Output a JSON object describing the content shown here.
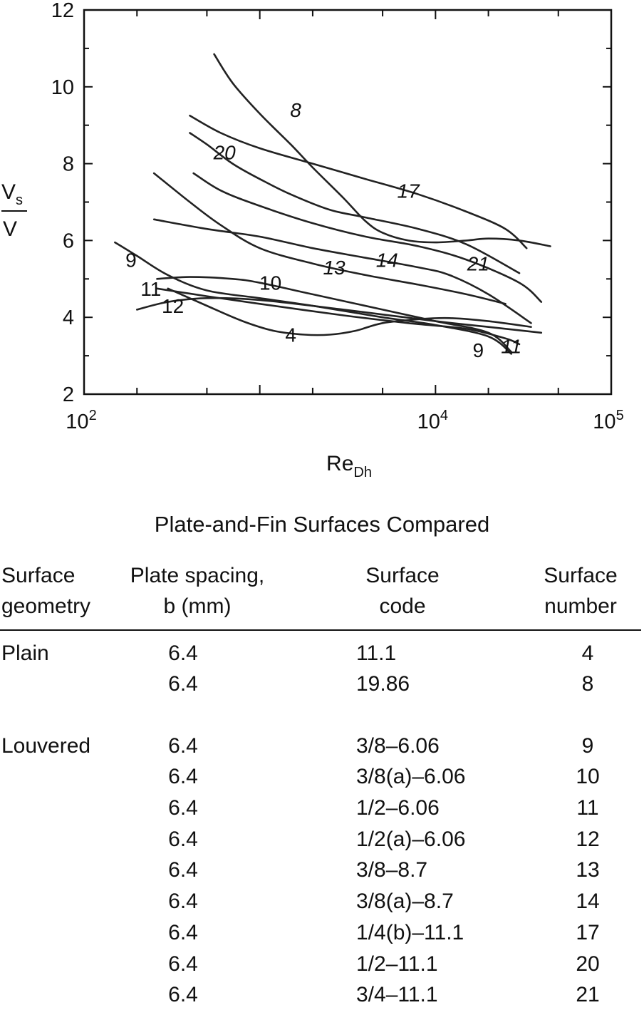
{
  "chart_data": {
    "type": "line",
    "xscale": "log",
    "xlim": [
      100,
      100000
    ],
    "ylim": [
      2,
      12
    ],
    "xlabel": {
      "main": "Re",
      "sub": "Dh"
    },
    "ylabel": {
      "num_main": "V",
      "num_sub": "s",
      "den": "V"
    },
    "x_ticks": [
      {
        "base": "10",
        "exp": "2",
        "value": 100
      },
      {
        "base": "10",
        "exp": "4",
        "value": 10000
      },
      {
        "base": "10",
        "exp": "5",
        "value": 100000
      }
    ],
    "y_ticks": [
      "2",
      "4",
      "6",
      "8",
      "10",
      "12"
    ],
    "series": [
      {
        "name": "8",
        "label_at": [
          1600,
          9.4
        ],
        "italic": true,
        "points": [
          [
            550,
            10.85
          ],
          [
            700,
            10.1
          ],
          [
            1000,
            9.3
          ],
          [
            1500,
            8.5
          ],
          [
            2000,
            7.9
          ],
          [
            3000,
            7.1
          ],
          [
            4000,
            6.5
          ],
          [
            5000,
            6.2
          ],
          [
            7000,
            6.0
          ],
          [
            10000,
            5.95
          ],
          [
            15000,
            6.0
          ],
          [
            20000,
            6.05
          ],
          [
            30000,
            6.0
          ],
          [
            45000,
            5.85
          ]
        ]
      },
      {
        "name": "17",
        "label_at": [
          7000,
          7.3
        ],
        "italic": true,
        "points": [
          [
            400,
            9.25
          ],
          [
            600,
            8.8
          ],
          [
            1000,
            8.4
          ],
          [
            2000,
            8.0
          ],
          [
            4000,
            7.6
          ],
          [
            8000,
            7.2
          ],
          [
            15000,
            6.75
          ],
          [
            25000,
            6.3
          ],
          [
            33000,
            5.8
          ]
        ]
      },
      {
        "name": "20",
        "label_at": [
          630,
          8.3
        ],
        "italic": true,
        "points": [
          [
            400,
            8.8
          ],
          [
            500,
            8.5
          ],
          [
            700,
            8.0
          ],
          [
            1000,
            7.6
          ],
          [
            1500,
            7.2
          ],
          [
            2500,
            6.8
          ],
          [
            4000,
            6.6
          ],
          [
            8000,
            6.3
          ],
          [
            15000,
            5.9
          ],
          [
            30000,
            5.15
          ]
        ]
      },
      {
        "name": "21",
        "label_at": [
          17500,
          5.4
        ],
        "italic": true,
        "points": [
          [
            420,
            7.75
          ],
          [
            600,
            7.3
          ],
          [
            1000,
            6.9
          ],
          [
            2000,
            6.45
          ],
          [
            4000,
            6.1
          ],
          [
            8000,
            5.85
          ],
          [
            15000,
            5.5
          ],
          [
            30000,
            4.9
          ],
          [
            40000,
            4.4
          ]
        ]
      },
      {
        "name": "14",
        "label_at": [
          5300,
          5.5
        ],
        "italic": true,
        "points": [
          [
            250,
            6.55
          ],
          [
            500,
            6.3
          ],
          [
            1000,
            6.1
          ],
          [
            2000,
            5.8
          ],
          [
            4000,
            5.55
          ],
          [
            8000,
            5.3
          ],
          [
            12000,
            5.1
          ],
          [
            20000,
            4.6
          ],
          [
            35000,
            3.85
          ]
        ]
      },
      {
        "name": "13",
        "label_at": [
          2650,
          5.3
        ],
        "italic": true,
        "points": [
          [
            250,
            7.75
          ],
          [
            400,
            7.0
          ],
          [
            600,
            6.4
          ],
          [
            1000,
            5.8
          ],
          [
            2000,
            5.4
          ],
          [
            4000,
            5.1
          ],
          [
            8000,
            4.85
          ],
          [
            15000,
            4.6
          ],
          [
            25000,
            4.35
          ]
        ]
      },
      {
        "name": "9",
        "label_at": [
          17500,
          3.15
        ],
        "italic": false,
        "points": [
          [
            150,
            5.95
          ],
          [
            200,
            5.6
          ],
          [
            300,
            5.1
          ],
          [
            500,
            4.7
          ],
          [
            1000,
            4.5
          ],
          [
            2000,
            4.3
          ],
          [
            5000,
            4.0
          ],
          [
            10000,
            3.8
          ],
          [
            20000,
            3.5
          ],
          [
            27000,
            3.05
          ]
        ]
      },
      {
        "name": "10",
        "label_at": [
          1150,
          4.9
        ],
        "italic": false,
        "points": [
          [
            260,
            5.0
          ],
          [
            400,
            5.05
          ],
          [
            700,
            5.0
          ],
          [
            1000,
            4.9
          ],
          [
            2000,
            4.6
          ],
          [
            5000,
            4.2
          ],
          [
            10000,
            3.9
          ],
          [
            20000,
            3.6
          ],
          [
            27000,
            3.1
          ]
        ]
      },
      {
        "name": "11",
        "label_at": [
          27000,
          3.25
        ],
        "italic": true,
        "points": [
          [
            260,
            4.75
          ],
          [
            500,
            4.55
          ],
          [
            1000,
            4.35
          ],
          [
            3000,
            4.05
          ],
          [
            7000,
            3.85
          ],
          [
            15000,
            3.7
          ],
          [
            25000,
            3.45
          ],
          [
            30000,
            3.3
          ]
        ]
      },
      {
        "name": "12",
        "label_at": [
          320,
          4.3
        ],
        "italic": false,
        "points": [
          [
            200,
            4.2
          ],
          [
            300,
            4.4
          ],
          [
            500,
            4.5
          ],
          [
            1000,
            4.45
          ],
          [
            3000,
            4.2
          ],
          [
            10000,
            3.9
          ],
          [
            20000,
            3.75
          ],
          [
            40000,
            3.6
          ]
        ]
      },
      {
        "name": "4",
        "label_at": [
          1500,
          3.55
        ],
        "italic": false,
        "points": [
          [
            300,
            4.75
          ],
          [
            500,
            4.3
          ],
          [
            800,
            3.9
          ],
          [
            1200,
            3.65
          ],
          [
            1800,
            3.55
          ],
          [
            2500,
            3.55
          ],
          [
            3500,
            3.65
          ],
          [
            5000,
            3.85
          ],
          [
            8000,
            3.95
          ],
          [
            12000,
            3.98
          ],
          [
            20000,
            3.9
          ],
          [
            35000,
            3.75
          ]
        ]
      }
    ],
    "extra_labels": [
      {
        "text": "9",
        "at": [
          185,
          5.5
        ],
        "italic": false
      },
      {
        "text": "11",
        "at": [
          240,
          4.75
        ],
        "italic": false
      }
    ]
  },
  "table": {
    "title": "Plate-and-Fin Surfaces Compared",
    "headers": {
      "geometry": [
        "Surface",
        "geometry"
      ],
      "spacing": [
        "Plate spacing,",
        "b (mm)"
      ],
      "code": [
        "Surface",
        "code"
      ],
      "number": [
        "Surface",
        "number"
      ]
    },
    "rows": [
      {
        "geometry": "Plain",
        "spacing": "6.4",
        "code": "11.1",
        "number": "4"
      },
      {
        "geometry": "",
        "spacing": "6.4",
        "code": "19.86",
        "number": "8"
      },
      {
        "geometry": "Louvered",
        "spacing": "6.4",
        "code": "3/8–6.06",
        "number": "9"
      },
      {
        "geometry": "",
        "spacing": "6.4",
        "code": "3/8(a)–6.06",
        "number": "10"
      },
      {
        "geometry": "",
        "spacing": "6.4",
        "code": "1/2–6.06",
        "number": "11"
      },
      {
        "geometry": "",
        "spacing": "6.4",
        "code": "1/2(a)–6.06",
        "number": "12"
      },
      {
        "geometry": "",
        "spacing": "6.4",
        "code": "3/8–8.7",
        "number": "13"
      },
      {
        "geometry": "",
        "spacing": "6.4",
        "code": "3/8(a)–8.7",
        "number": "14"
      },
      {
        "geometry": "",
        "spacing": "6.4",
        "code": "1/4(b)–11.1",
        "number": "17"
      },
      {
        "geometry": "",
        "spacing": "6.4",
        "code": "1/2–11.1",
        "number": "20"
      },
      {
        "geometry": "",
        "spacing": "6.4",
        "code": "3/4–11.1",
        "number": "21"
      }
    ]
  }
}
